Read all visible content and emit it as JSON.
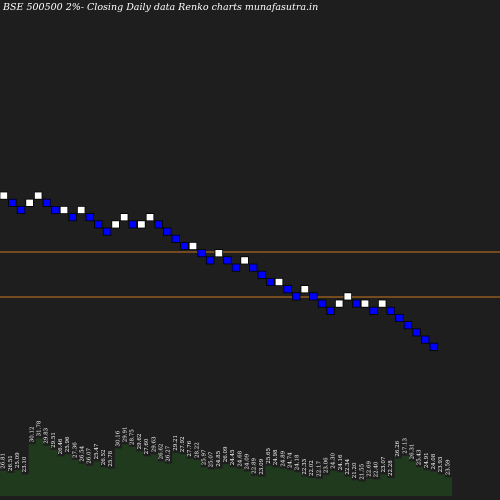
{
  "chart_data": {
    "type": "renko",
    "title": "BSE 500500  2%-  Closing Daily data  Renko  charts munafasutra.in",
    "colors": {
      "background": "#1e1e1e",
      "up_brick": "#ffffff",
      "down_brick": "#0000ff",
      "brick_border": "#000000",
      "support_line": "#c87820",
      "volume_bar": "#1f3a1c"
    },
    "price_range": [
      0,
      49
    ],
    "reference_levels": [
      25,
      30
    ],
    "bricks": [
      {
        "dir": "up",
        "level": 29
      },
      {
        "dir": "down",
        "level": 28
      },
      {
        "dir": "down",
        "level": 27
      },
      {
        "dir": "up",
        "level": 28
      },
      {
        "dir": "up",
        "level": 29
      },
      {
        "dir": "down",
        "level": 28
      },
      {
        "dir": "down",
        "level": 27
      },
      {
        "dir": "up",
        "level": 27
      },
      {
        "dir": "down",
        "level": 26
      },
      {
        "dir": "up",
        "level": 27
      },
      {
        "dir": "down",
        "level": 26
      },
      {
        "dir": "down",
        "level": 25
      },
      {
        "dir": "down",
        "level": 24
      },
      {
        "dir": "up",
        "level": 25
      },
      {
        "dir": "up",
        "level": 26
      },
      {
        "dir": "down",
        "level": 25
      },
      {
        "dir": "up",
        "level": 25
      },
      {
        "dir": "up",
        "level": 26
      },
      {
        "dir": "down",
        "level": 25
      },
      {
        "dir": "down",
        "level": 24
      },
      {
        "dir": "down",
        "level": 23
      },
      {
        "dir": "down",
        "level": 22
      },
      {
        "dir": "up",
        "level": 22
      },
      {
        "dir": "down",
        "level": 21
      },
      {
        "dir": "down",
        "level": 20
      },
      {
        "dir": "up",
        "level": 21
      },
      {
        "dir": "down",
        "level": 20
      },
      {
        "dir": "down",
        "level": 19
      },
      {
        "dir": "up",
        "level": 20
      },
      {
        "dir": "down",
        "level": 19
      },
      {
        "dir": "down",
        "level": 18
      },
      {
        "dir": "down",
        "level": 17
      },
      {
        "dir": "up",
        "level": 17
      },
      {
        "dir": "down",
        "level": 16
      },
      {
        "dir": "down",
        "level": 15
      },
      {
        "dir": "up",
        "level": 16
      },
      {
        "dir": "down",
        "level": 15
      },
      {
        "dir": "down",
        "level": 14
      },
      {
        "dir": "down",
        "level": 13
      },
      {
        "dir": "up",
        "level": 14
      },
      {
        "dir": "up",
        "level": 15
      },
      {
        "dir": "down",
        "level": 14
      },
      {
        "dir": "up",
        "level": 14
      },
      {
        "dir": "down",
        "level": 13
      },
      {
        "dir": "up",
        "level": 14
      },
      {
        "dir": "down",
        "level": 13
      },
      {
        "dir": "down",
        "level": 12
      },
      {
        "dir": "down",
        "level": 11
      },
      {
        "dir": "down",
        "level": 10
      },
      {
        "dir": "down",
        "level": 9
      },
      {
        "dir": "down",
        "level": 8
      }
    ],
    "volume": [
      {
        "label": "26.81",
        "value": 0.35
      },
      {
        "label": "26.51",
        "value": 0.32
      },
      {
        "label": "25.09",
        "value": 0.36
      },
      {
        "label": "23.10",
        "value": 0.3
      },
      {
        "label": "30.12",
        "value": 0.72
      },
      {
        "label": "31.78",
        "value": 0.8
      },
      {
        "label": "29.83",
        "value": 0.7
      },
      {
        "label": "29.51",
        "value": 0.64
      },
      {
        "label": "26.46",
        "value": 0.55
      },
      {
        "label": "25.96",
        "value": 0.58
      },
      {
        "label": "27.36",
        "value": 0.5
      },
      {
        "label": "26.54",
        "value": 0.45
      },
      {
        "label": "26.07",
        "value": 0.42
      },
      {
        "label": "25.47",
        "value": 0.48
      },
      {
        "label": "26.52",
        "value": 0.4
      },
      {
        "label": "25.78",
        "value": 0.38
      },
      {
        "label": "30.16",
        "value": 0.66
      },
      {
        "label": "29.91",
        "value": 0.72
      },
      {
        "label": "28.75",
        "value": 0.68
      },
      {
        "label": "29.62",
        "value": 0.62
      },
      {
        "label": "27.60",
        "value": 0.55
      },
      {
        "label": "29.63",
        "value": 0.58
      },
      {
        "label": "26.62",
        "value": 0.48
      },
      {
        "label": "26.27",
        "value": 0.45
      },
      {
        "label": "29.21",
        "value": 0.6
      },
      {
        "label": "27.92",
        "value": 0.58
      },
      {
        "label": "27.76",
        "value": 0.52
      },
      {
        "label": "28.22",
        "value": 0.5
      },
      {
        "label": "25.97",
        "value": 0.4
      },
      {
        "label": "25.07",
        "value": 0.37
      },
      {
        "label": "24.85",
        "value": 0.38
      },
      {
        "label": "26.09",
        "value": 0.44
      },
      {
        "label": "24.45",
        "value": 0.4
      },
      {
        "label": "24.68",
        "value": 0.38
      },
      {
        "label": "24.09",
        "value": 0.34
      },
      {
        "label": "22.89",
        "value": 0.28
      },
      {
        "label": "23.09",
        "value": 0.27
      },
      {
        "label": "25.65",
        "value": 0.42
      },
      {
        "label": "24.98",
        "value": 0.4
      },
      {
        "label": "24.89",
        "value": 0.38
      },
      {
        "label": "24.74",
        "value": 0.36
      },
      {
        "label": "24.18",
        "value": 0.33
      },
      {
        "label": "22.33",
        "value": 0.27
      },
      {
        "label": "22.02",
        "value": 0.25
      },
      {
        "label": "22.17",
        "value": 0.24
      },
      {
        "label": "23.06",
        "value": 0.29
      },
      {
        "label": "24.30",
        "value": 0.35
      },
      {
        "label": "24.16",
        "value": 0.33
      },
      {
        "label": "22.34",
        "value": 0.27
      },
      {
        "label": "21.20",
        "value": 0.22
      },
      {
        "label": "21.55",
        "value": 0.2
      },
      {
        "label": "22.69",
        "value": 0.24
      },
      {
        "label": "22.40",
        "value": 0.23
      },
      {
        "label": "23.07",
        "value": 0.3
      },
      {
        "label": "22.28",
        "value": 0.25
      },
      {
        "label": "26.26",
        "value": 0.52
      },
      {
        "label": "27.13",
        "value": 0.56
      },
      {
        "label": "26.31",
        "value": 0.48
      },
      {
        "label": "25.43",
        "value": 0.4
      },
      {
        "label": "24.91",
        "value": 0.36
      },
      {
        "label": "24.08",
        "value": 0.34
      },
      {
        "label": "23.93",
        "value": 0.3
      },
      {
        "label": "23.59",
        "value": 0.26
      }
    ]
  }
}
